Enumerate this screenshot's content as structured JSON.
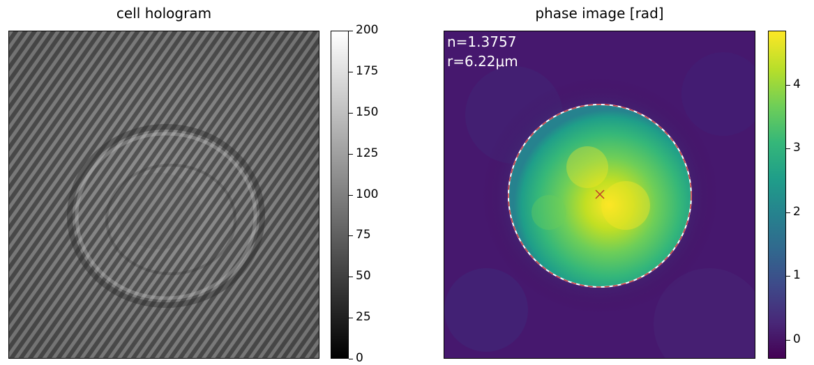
{
  "chart_data": [
    {
      "type": "heatmap",
      "title": "cell hologram",
      "colormap": "gray",
      "colorbar": {
        "ticks": [
          0,
          25,
          50,
          75,
          100,
          125,
          150,
          175,
          200
        ],
        "vmin": 0,
        "vmax": 200
      },
      "content": "interference fringe pattern with faint circular cell outline"
    },
    {
      "type": "heatmap",
      "title": "phase image [rad]",
      "colormap": "viridis",
      "colorbar": {
        "ticks": [
          0,
          1,
          2,
          3,
          4
        ],
        "vmin": -0.3,
        "vmax": 4.85
      },
      "annotations": [
        "n=1.3757",
        "r=6.22μm"
      ],
      "content": "circular cell with phase up to ~4.5 rad, fitted circle contour and center marker"
    }
  ]
}
